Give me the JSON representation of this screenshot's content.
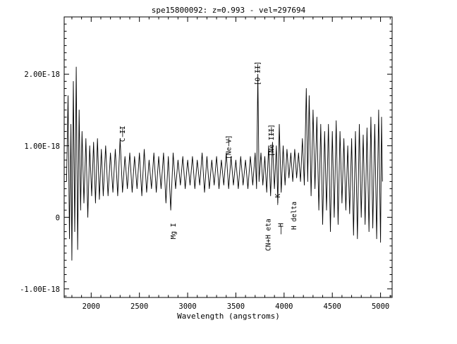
{
  "chart_data": {
    "type": "line",
    "title": "spe15800092: z=0.993 - vel=297694",
    "xlabel": "Wavelength (angstroms)",
    "ylabel": "",
    "xlim": [
      1720,
      5120
    ],
    "ylim": [
      -1.12e-18,
      2.8e-18
    ],
    "x_ticks": [
      2000,
      2500,
      3000,
      3500,
      4000,
      4500,
      5000
    ],
    "x_tick_labels": [
      "2000",
      "2500",
      "3000",
      "3500",
      "4000",
      "4500",
      "5000"
    ],
    "y_ticks": [
      -1e-18,
      0,
      1e-18,
      2e-18
    ],
    "y_tick_labels": [
      "-1.00E-18",
      "0",
      "1.00E-18",
      "2.00E-18"
    ],
    "grid": false,
    "series": [
      {
        "points": [
          [
            1745,
            5e-19
          ],
          [
            1760,
            1.7e-18
          ],
          [
            1775,
            -3e-19
          ],
          [
            1790,
            1.3e-18
          ],
          [
            1800,
            -6e-19
          ],
          [
            1815,
            1.9e-18
          ],
          [
            1830,
            -2e-19
          ],
          [
            1845,
            2.1e-18
          ],
          [
            1860,
            -4.5e-19
          ],
          [
            1875,
            1.5e-18
          ],
          [
            1890,
            1e-19
          ],
          [
            1905,
            1.2e-18
          ],
          [
            1925,
            2e-19
          ],
          [
            1945,
            1.1e-18
          ],
          [
            1965,
            0.0
          ],
          [
            1985,
            1e-18
          ],
          [
            2005,
            3e-19
          ],
          [
            2025,
            1.05e-18
          ],
          [
            2045,
            2e-19
          ],
          [
            2065,
            1.1e-18
          ],
          [
            2085,
            2.5e-19
          ],
          [
            2105,
            9.5e-19
          ],
          [
            2125,
            3e-19
          ],
          [
            2150,
            1e-18
          ],
          [
            2175,
            3e-19
          ],
          [
            2200,
            9e-19
          ],
          [
            2225,
            3.5e-19
          ],
          [
            2250,
            9.5e-19
          ],
          [
            2275,
            3e-19
          ],
          [
            2300,
            1.1e-18
          ],
          [
            2325,
            3.5e-19
          ],
          [
            2350,
            8.5e-19
          ],
          [
            2375,
            4e-19
          ],
          [
            2400,
            9e-19
          ],
          [
            2425,
            3.5e-19
          ],
          [
            2450,
            8.5e-19
          ],
          [
            2475,
            4e-19
          ],
          [
            2500,
            9e-19
          ],
          [
            2525,
            3e-19
          ],
          [
            2550,
            9.5e-19
          ],
          [
            2575,
            3.5e-19
          ],
          [
            2600,
            8e-19
          ],
          [
            2625,
            4e-19
          ],
          [
            2650,
            9e-19
          ],
          [
            2675,
            3.5e-19
          ],
          [
            2700,
            8.5e-19
          ],
          [
            2725,
            4e-19
          ],
          [
            2750,
            9e-19
          ],
          [
            2775,
            2e-19
          ],
          [
            2800,
            8.5e-19
          ],
          [
            2825,
            1e-19
          ],
          [
            2850,
            9e-19
          ],
          [
            2875,
            4e-19
          ],
          [
            2900,
            8e-19
          ],
          [
            2925,
            4.5e-19
          ],
          [
            2950,
            8.5e-19
          ],
          [
            2975,
            4e-19
          ],
          [
            3000,
            8e-19
          ],
          [
            3025,
            4.5e-19
          ],
          [
            3050,
            8.5e-19
          ],
          [
            3075,
            4e-19
          ],
          [
            3100,
            8e-19
          ],
          [
            3125,
            4.5e-19
          ],
          [
            3150,
            9e-19
          ],
          [
            3175,
            3.5e-19
          ],
          [
            3200,
            8.5e-19
          ],
          [
            3225,
            4e-19
          ],
          [
            3250,
            8e-19
          ],
          [
            3275,
            4.5e-19
          ],
          [
            3300,
            8.5e-19
          ],
          [
            3325,
            4e-19
          ],
          [
            3350,
            8e-19
          ],
          [
            3375,
            4.5e-19
          ],
          [
            3400,
            9e-19
          ],
          [
            3425,
            4e-19
          ],
          [
            3450,
            8.5e-19
          ],
          [
            3475,
            4.5e-19
          ],
          [
            3500,
            8e-19
          ],
          [
            3525,
            4e-19
          ],
          [
            3550,
            8.5e-19
          ],
          [
            3575,
            4.5e-19
          ],
          [
            3600,
            8e-19
          ],
          [
            3625,
            4e-19
          ],
          [
            3650,
            8.5e-19
          ],
          [
            3675,
            4.5e-19
          ],
          [
            3700,
            9e-19
          ],
          [
            3715,
            4e-19
          ],
          [
            3728,
            2e-18
          ],
          [
            3740,
            5e-19
          ],
          [
            3760,
            9e-19
          ],
          [
            3780,
            4.5e-19
          ],
          [
            3800,
            8.5e-19
          ],
          [
            3820,
            3.5e-19
          ],
          [
            3840,
            1e-18
          ],
          [
            3860,
            3e-19
          ],
          [
            3880,
            1.05e-18
          ],
          [
            3900,
            4e-19
          ],
          [
            3920,
            1e-18
          ],
          [
            3935,
            2e-19
          ],
          [
            3950,
            1.3e-18
          ],
          [
            3970,
            3.5e-19
          ],
          [
            3990,
            1e-18
          ],
          [
            4010,
            4.5e-19
          ],
          [
            4030,
            9.5e-19
          ],
          [
            4050,
            5.5e-19
          ],
          [
            4070,
            9e-19
          ],
          [
            4090,
            5e-19
          ],
          [
            4110,
            9.5e-19
          ],
          [
            4130,
            5.5e-19
          ],
          [
            4150,
            9e-19
          ],
          [
            4170,
            5e-19
          ],
          [
            4190,
            1.1e-18
          ],
          [
            4210,
            4.5e-19
          ],
          [
            4230,
            1.8e-18
          ],
          [
            4245,
            5e-19
          ],
          [
            4260,
            1.7e-18
          ],
          [
            4280,
            3e-19
          ],
          [
            4300,
            1.5e-18
          ],
          [
            4320,
            4e-19
          ],
          [
            4340,
            1.4e-18
          ],
          [
            4360,
            1e-19
          ],
          [
            4380,
            1.3e-18
          ],
          [
            4400,
            -1e-19
          ],
          [
            4420,
            1.2e-18
          ],
          [
            4440,
            1e-19
          ],
          [
            4460,
            1.3e-18
          ],
          [
            4480,
            -2e-19
          ],
          [
            4500,
            1.2e-18
          ],
          [
            4520,
            0.0
          ],
          [
            4540,
            1.35e-18
          ],
          [
            4560,
            -1e-19
          ],
          [
            4580,
            1.2e-18
          ],
          [
            4600,
            2e-19
          ],
          [
            4620,
            1.1e-18
          ],
          [
            4640,
            1e-19
          ],
          [
            4660,
            1e-18
          ],
          [
            4680,
            5e-20
          ],
          [
            4700,
            1.1e-18
          ],
          [
            4720,
            -2.5e-19
          ],
          [
            4740,
            1.2e-18
          ],
          [
            4760,
            -3e-19
          ],
          [
            4780,
            1.3e-18
          ],
          [
            4800,
            0.0
          ],
          [
            4820,
            1.15e-18
          ],
          [
            4840,
            -1e-19
          ],
          [
            4860,
            1.25e-18
          ],
          [
            4880,
            -2e-19
          ],
          [
            4900,
            1.4e-18
          ],
          [
            4920,
            -1.5e-19
          ],
          [
            4940,
            1.3e-18
          ],
          [
            4960,
            -3e-19
          ],
          [
            4980,
            1.5e-18
          ],
          [
            5000,
            -3.5e-19
          ],
          [
            5010,
            1.4e-18
          ],
          [
            5020,
            5e-19
          ]
        ]
      }
    ],
    "line_labels": [
      {
        "text": "C II",
        "wavelength": 2326,
        "flux": 1.28e-18,
        "tick": true
      },
      {
        "text": "[Ne V]",
        "wavelength": 3426,
        "flux": 1.15e-18,
        "tick": true
      },
      {
        "text": "[O II]",
        "wavelength": 3727,
        "flux": 2.18e-18,
        "tick": true
      },
      {
        "text": "[Ne III]",
        "wavelength": 3869,
        "flux": 1.3e-18,
        "tick": true
      },
      {
        "text": "Mg I",
        "wavelength": 2852,
        "flux": -8e-20,
        "tick": false
      },
      {
        "text": "K",
        "wavelength": 3934,
        "flux": 3.3e-19,
        "tick": true
      },
      {
        "text": "H",
        "wavelength": 3969,
        "flux": -8e-20,
        "tick": true
      },
      {
        "text": "CN+H eta",
        "wavelength": 3835,
        "flux": -2e-20,
        "tick": false
      },
      {
        "text": "H delta",
        "wavelength": 4102,
        "flux": 2.2e-19,
        "tick": false
      }
    ]
  }
}
